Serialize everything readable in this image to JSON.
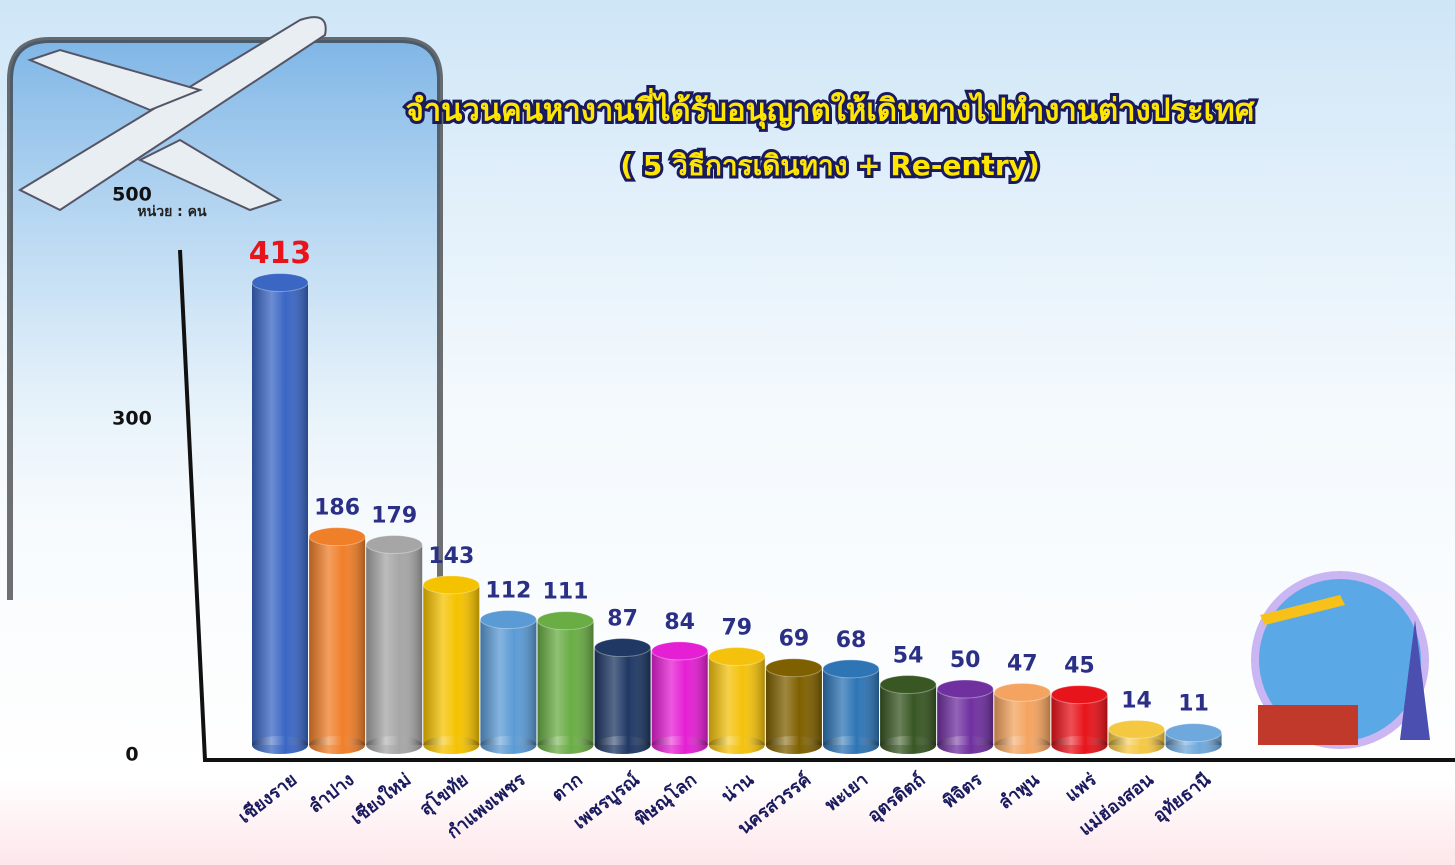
{
  "chart_data": {
    "type": "bar",
    "title": "จำนวนคนหางานที่ได้รับอนุญาตให้เดินทางไปทำงานต่างประเทศ",
    "subtitle": "( 5 วิธีการเดินทาง + Re-entry)",
    "y_label": "หน่วย : คน",
    "categories": [
      "เชียงราย",
      "ลำปาง",
      "เชียงใหม่",
      "สุโขทัย",
      "กำแพงเพชร",
      "ตาก",
      "เพชรบูรณ์",
      "พิษณุโลก",
      "น่าน",
      "นครสวรรค์",
      "พะเยา",
      "อุตรดิตถ์",
      "พิจิตร",
      "ลำพูน",
      "แพร่",
      "แม่ฮ่องสอน",
      "อุทัยธานี"
    ],
    "values": [
      413,
      186,
      179,
      143,
      112,
      111,
      87,
      84,
      79,
      69,
      68,
      54,
      50,
      47,
      45,
      14,
      11
    ],
    "colors": [
      "#3a66c4",
      "#f07f2a",
      "#a6a6a6",
      "#f5c200",
      "#5b9bd5",
      "#6aad45",
      "#1f3864",
      "#e51fd3",
      "#f4c20d",
      "#7f6000",
      "#2e75b6",
      "#385723",
      "#7030a0",
      "#f4a460",
      "#e8141b",
      "#f5c842",
      "#6fa8dc"
    ],
    "value_label_colors": [
      "#e8141b",
      "#2b2f86",
      "#2b2f86",
      "#2b2f86",
      "#2b2f86",
      "#2b2f86",
      "#2b2f86",
      "#2b2f86",
      "#2b2f86",
      "#2b2f86",
      "#2b2f86",
      "#2b2f86",
      "#2b2f86",
      "#2b2f86",
      "#2b2f86",
      "#2b2f86",
      "#2b2f86"
    ],
    "ylim": [
      0,
      500
    ],
    "yticks": [
      0,
      300,
      500
    ],
    "grid": false
  }
}
